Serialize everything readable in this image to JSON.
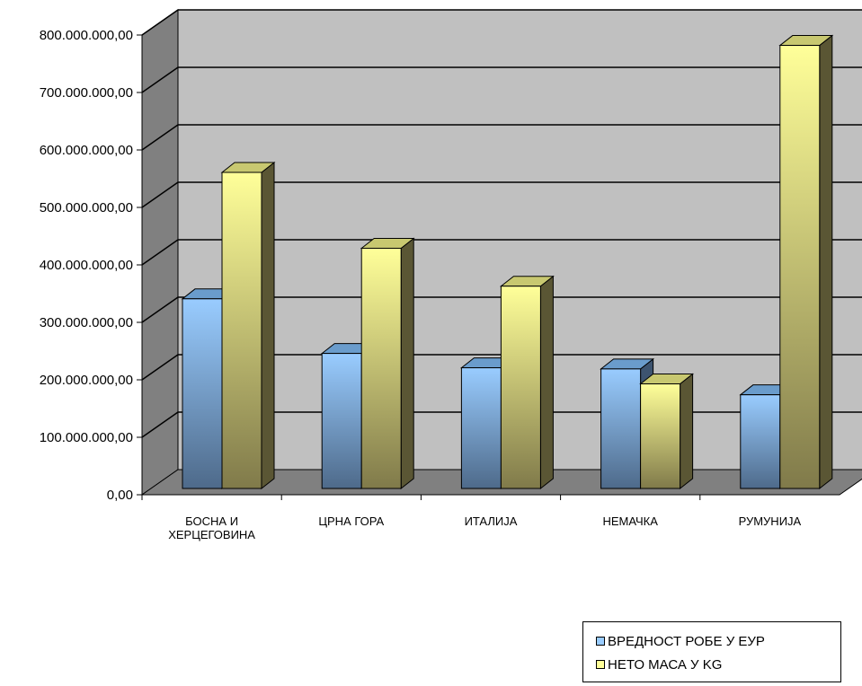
{
  "chart_data": {
    "type": "bar",
    "categories": [
      [
        "БОСНА И",
        "ХЕРЦЕГОВИНА"
      ],
      [
        "ЦРНА ГОРА"
      ],
      [
        "ИТАЛИЈА"
      ],
      [
        "НЕМАЧКА"
      ],
      [
        "РУМУНИЈА"
      ]
    ],
    "series": [
      {
        "name": "ВРЕДНОСТ РОБЕ У ЕУР",
        "values": [
          330000000,
          235000000,
          210000000,
          208000000,
          163000000
        ],
        "color": "#99ccff"
      },
      {
        "name": "НЕТО МАСА У KG",
        "values": [
          550000000,
          418000000,
          352000000,
          182000000,
          771000000
        ],
        "color": "#ffff99"
      }
    ],
    "yticks": [
      "0,00",
      "100.000.000,00",
      "200.000.000,00",
      "300.000.000,00",
      "400.000.000,00",
      "500.000.000,00",
      "600.000.000,00",
      "700.000.000,00",
      "800.000.000,00"
    ],
    "ylim": [
      0,
      800000000
    ],
    "grid": true,
    "legend_position": "bottom-right",
    "style": "3d-clustered-column",
    "wall_color": "#c0c0c0",
    "side_wall_color": "#808080",
    "floor_color": "#808080"
  }
}
